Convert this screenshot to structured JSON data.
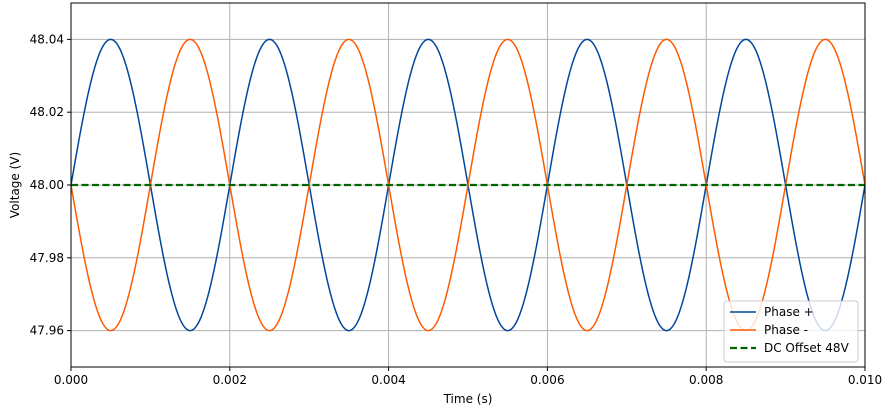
{
  "chart_data": {
    "type": "line",
    "title": "",
    "xlabel": "Time (s)",
    "ylabel": "Voltage (V)",
    "xlim": [
      0.0,
      0.01
    ],
    "ylim": [
      47.95,
      48.05
    ],
    "grid": true,
    "legend_position": "lower right",
    "x_ticks": [
      0.0,
      0.002,
      0.004,
      0.006,
      0.008,
      0.01
    ],
    "x_tick_labels": [
      "0.000",
      "0.002",
      "0.004",
      "0.006",
      "0.008",
      "0.010"
    ],
    "y_ticks": [
      47.96,
      47.98,
      48.0,
      48.02,
      48.04
    ],
    "y_tick_labels": [
      "47.96",
      "47.98",
      "48.00",
      "48.02",
      "48.04"
    ],
    "series": [
      {
        "name": "Phase +",
        "color": "#00479c",
        "style": "solid",
        "function": "48 + 0.04*sin(2*pi*500*t)",
        "offset": 48.0,
        "amplitude": 0.04,
        "frequency_hz": 500,
        "phase_sign": 1,
        "x": [
          0.0,
          0.0005,
          0.001,
          0.0015,
          0.002,
          0.0025,
          0.003,
          0.0035,
          0.004,
          0.0045,
          0.005,
          0.0055,
          0.006,
          0.0065,
          0.007,
          0.0075,
          0.008,
          0.0085,
          0.009,
          0.0095,
          0.01
        ],
        "values": [
          48.0,
          48.04,
          48.0,
          47.96,
          48.0,
          48.04,
          48.0,
          47.96,
          48.0,
          48.04,
          48.0,
          47.96,
          48.0,
          48.04,
          48.0,
          47.96,
          48.0,
          48.04,
          48.0,
          47.96,
          48.0
        ]
      },
      {
        "name": "Phase -",
        "color": "#ff5a00",
        "style": "solid",
        "function": "48 - 0.04*sin(2*pi*500*t)",
        "offset": 48.0,
        "amplitude": 0.04,
        "frequency_hz": 500,
        "phase_sign": -1,
        "x": [
          0.0,
          0.0005,
          0.001,
          0.0015,
          0.002,
          0.0025,
          0.003,
          0.0035,
          0.004,
          0.0045,
          0.005,
          0.0055,
          0.006,
          0.0065,
          0.007,
          0.0075,
          0.008,
          0.0085,
          0.009,
          0.0095,
          0.01
        ],
        "values": [
          48.0,
          47.96,
          48.0,
          48.04,
          48.0,
          47.96,
          48.0,
          48.04,
          48.0,
          47.96,
          48.0,
          48.04,
          48.0,
          47.96,
          48.0,
          48.04,
          48.0,
          47.96,
          48.0,
          48.04,
          48.0
        ]
      },
      {
        "name": "DC Offset 48V",
        "color": "#006400",
        "style": "dashed",
        "function": "48",
        "offset": 48.0,
        "amplitude": 0,
        "frequency_hz": 0,
        "phase_sign": 0,
        "x": [
          0.0,
          0.01
        ],
        "values": [
          48.0,
          48.0
        ]
      }
    ]
  }
}
